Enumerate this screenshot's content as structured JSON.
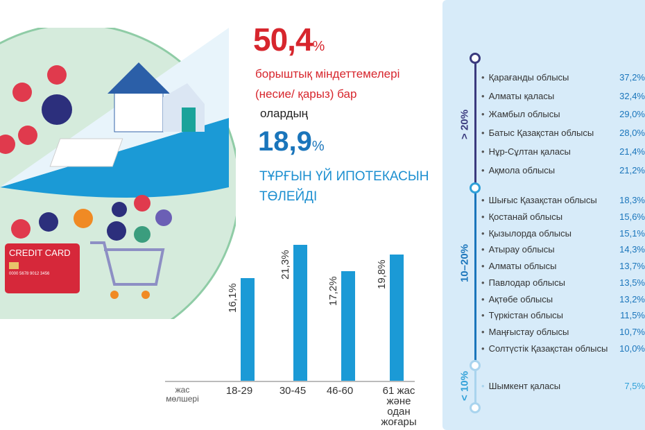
{
  "headline": {
    "value": "50,4",
    "unit": "%",
    "text_line1": "борыштық міндеттемелері",
    "text_line2": "(несие/ қарыз) бар"
  },
  "sub": {
    "intro": "олардың",
    "value": "18,9",
    "unit": "%",
    "text_line1": "ТҰРҒЫН ҮЙ ИПОТЕКАСЫН",
    "text_line2": "ТӨЛЕЙДІ"
  },
  "illustration": {
    "card_text": "CREDIT CARD",
    "card_number": "0000 5678 9012 3456",
    "icons": [
      "house-icon",
      "document-icon",
      "bicycle-icon",
      "infinity-icon",
      "dollar-icon",
      "percent-icon",
      "credit-card-icon",
      "mail-icon",
      "shopping-cart-icon",
      "heart-icon",
      "star-icon",
      "clock-icon",
      "graduation-cap-icon",
      "check-icon",
      "shoe-icon"
    ]
  },
  "chart_data": {
    "type": "bar",
    "xlabel": "жас мөлшері",
    "categories": [
      "18-29",
      "30-45",
      "46-60",
      "61 жас және одан жоғары"
    ],
    "values": [
      16.1,
      21.3,
      17.2,
      19.8
    ],
    "labels": [
      "16,1%",
      "21,3%",
      "17,2%",
      "19,8%"
    ],
    "unit": "%",
    "color": "#1b9ad6"
  },
  "regions": {
    "groups": [
      {
        "label": "> 20%",
        "color": "#3a3a7e",
        "items": [
          {
            "name": "Қарағанды облысы",
            "value": "37,2%"
          },
          {
            "name": "Алматы қаласы",
            "value": "32,4%"
          },
          {
            "name": "Жамбыл облысы",
            "value": "29,0%"
          },
          {
            "name": "Батыс Қазақстан облысы",
            "value": "28,0%"
          },
          {
            "name": "Нұр-Сұлтан қаласы",
            "value": "21,4%"
          },
          {
            "name": "Ақмола облысы",
            "value": "21,2%"
          }
        ]
      },
      {
        "label": "10–20%",
        "color": "#1a75bb",
        "items": [
          {
            "name": "Шығыс Қазақстан облысы",
            "value": "18,3%"
          },
          {
            "name": "Қостанай облысы",
            "value": "15,6%"
          },
          {
            "name": "Қызылорда облысы",
            "value": "15,1%"
          },
          {
            "name": "Атырау облысы",
            "value": "14,3%"
          },
          {
            "name": "Алматы облысы",
            "value": "13,7%"
          },
          {
            "name": "Павлодар облысы",
            "value": "13,5%"
          },
          {
            "name": "Ақтөбе облысы",
            "value": "13,2%"
          },
          {
            "name": "Түркістан облысы",
            "value": "11,5%"
          },
          {
            "name": "Маңғыстау облысы",
            "value": "10,7%"
          },
          {
            "name": "Солтүстік Қазақстан облысы",
            "value": "10,0%"
          }
        ]
      },
      {
        "label": "< 10%",
        "color": "#2fa0d8",
        "items": [
          {
            "name": "Шымкент қаласы",
            "value": "7,5%"
          }
        ]
      }
    ]
  }
}
